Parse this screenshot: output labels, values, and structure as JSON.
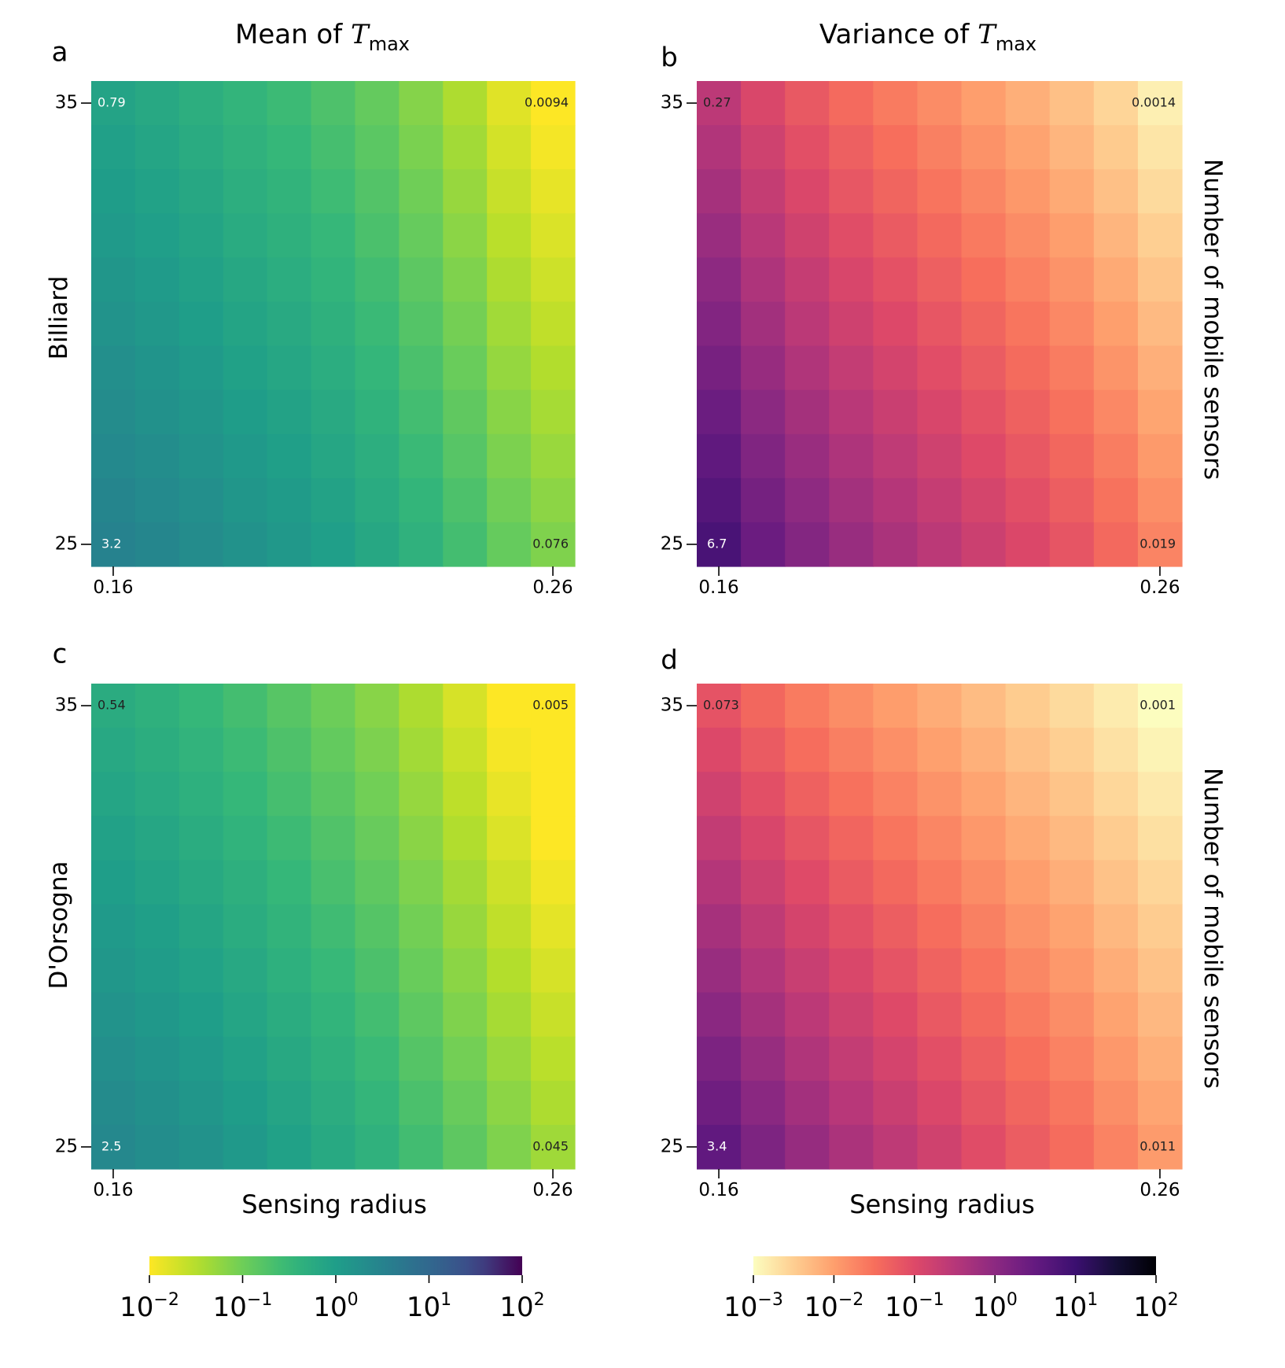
{
  "chart_data": {
    "type": "heatmap",
    "grid": {
      "cols": 11,
      "rows": 11
    },
    "x_axis": {
      "label": "Sensing radius",
      "min": 0.16,
      "max": 0.26,
      "ticks": [
        "0.16",
        "0.26"
      ]
    },
    "y_axis": {
      "label": "Number of mobile sensors",
      "min": 25,
      "max": 35,
      "ticks": [
        "35",
        "25"
      ]
    },
    "columns": {
      "mean": {
        "title_prefix": "Mean of ",
        "symbol": "T",
        "subscript": "max"
      },
      "variance": {
        "title_prefix": "Variance of ",
        "symbol": "T",
        "subscript": "max"
      }
    },
    "rows": {
      "billiard": {
        "label": "Billiard"
      },
      "dorsogna": {
        "label": "D'Orsogna"
      }
    },
    "panels": [
      {
        "id": "a",
        "model": "Billiard",
        "stat": "Mean",
        "colormap": "viridis_r",
        "log_range": [
          -2,
          2
        ],
        "corners": {
          "top_left": {
            "value": 0.79,
            "label": "0.79"
          },
          "top_right": {
            "value": 0.0094,
            "label": "0.0094"
          },
          "bottom_left": {
            "value": 3.2,
            "label": "3.2"
          },
          "bottom_right": {
            "value": 0.076,
            "label": "0.076"
          }
        },
        "column_profile": [
          0,
          0.05,
          0.11,
          0.18,
          0.24,
          0.32,
          0.42,
          0.55,
          0.7,
          0.88,
          1.0
        ]
      },
      {
        "id": "b",
        "model": "Billiard",
        "stat": "Variance",
        "colormap": "magma_r",
        "log_range": [
          -3,
          2
        ],
        "corners": {
          "top_left": {
            "value": 0.27,
            "label": "0.27"
          },
          "top_right": {
            "value": 0.0014,
            "label": "0.0014"
          },
          "bottom_left": {
            "value": 6.7,
            "label": "6.7"
          },
          "bottom_right": {
            "value": 0.019,
            "label": "0.019"
          }
        },
        "column_profile": [
          0,
          0.16,
          0.28,
          0.38,
          0.46,
          0.54,
          0.62,
          0.7,
          0.78,
          0.88,
          1.0
        ]
      },
      {
        "id": "c",
        "model": "D'Orsogna",
        "stat": "Mean",
        "colormap": "viridis_r",
        "log_range": [
          -2,
          2
        ],
        "corners": {
          "top_left": {
            "value": 0.54,
            "label": "0.54"
          },
          "top_right": {
            "value": 0.005,
            "label": "0.005"
          },
          "bottom_left": {
            "value": 2.5,
            "label": "2.5"
          },
          "bottom_right": {
            "value": 0.045,
            "label": "0.045"
          }
        },
        "column_profile": [
          0,
          0.05,
          0.11,
          0.18,
          0.26,
          0.35,
          0.45,
          0.58,
          0.72,
          0.87,
          1.0
        ]
      },
      {
        "id": "d",
        "model": "D'Orsogna",
        "stat": "Variance",
        "colormap": "magma_r",
        "log_range": [
          -3,
          2
        ],
        "corners": {
          "top_left": {
            "value": 0.073,
            "label": "0.073"
          },
          "top_right": {
            "value": 0.001,
            "label": "0.001"
          },
          "bottom_left": {
            "value": 3.4,
            "label": "3.4"
          },
          "bottom_right": {
            "value": 0.011,
            "label": "0.011"
          }
        },
        "column_profile": [
          0,
          0.14,
          0.26,
          0.36,
          0.45,
          0.54,
          0.63,
          0.72,
          0.8,
          0.9,
          1.0
        ]
      }
    ],
    "colorbars": [
      {
        "colormap": "viridis_r",
        "ticks": [
          {
            "base": "10",
            "exp": "−2"
          },
          {
            "base": "10",
            "exp": "−1"
          },
          {
            "base": "10",
            "exp": "0"
          },
          {
            "base": "10",
            "exp": "1"
          },
          {
            "base": "10",
            "exp": "2"
          }
        ]
      },
      {
        "colormap": "magma_r",
        "ticks": [
          {
            "base": "10",
            "exp": "−3"
          },
          {
            "base": "10",
            "exp": "−2"
          },
          {
            "base": "10",
            "exp": "−1"
          },
          {
            "base": "10",
            "exp": "0"
          },
          {
            "base": "10",
            "exp": "1"
          },
          {
            "base": "10",
            "exp": "2"
          }
        ]
      }
    ]
  }
}
